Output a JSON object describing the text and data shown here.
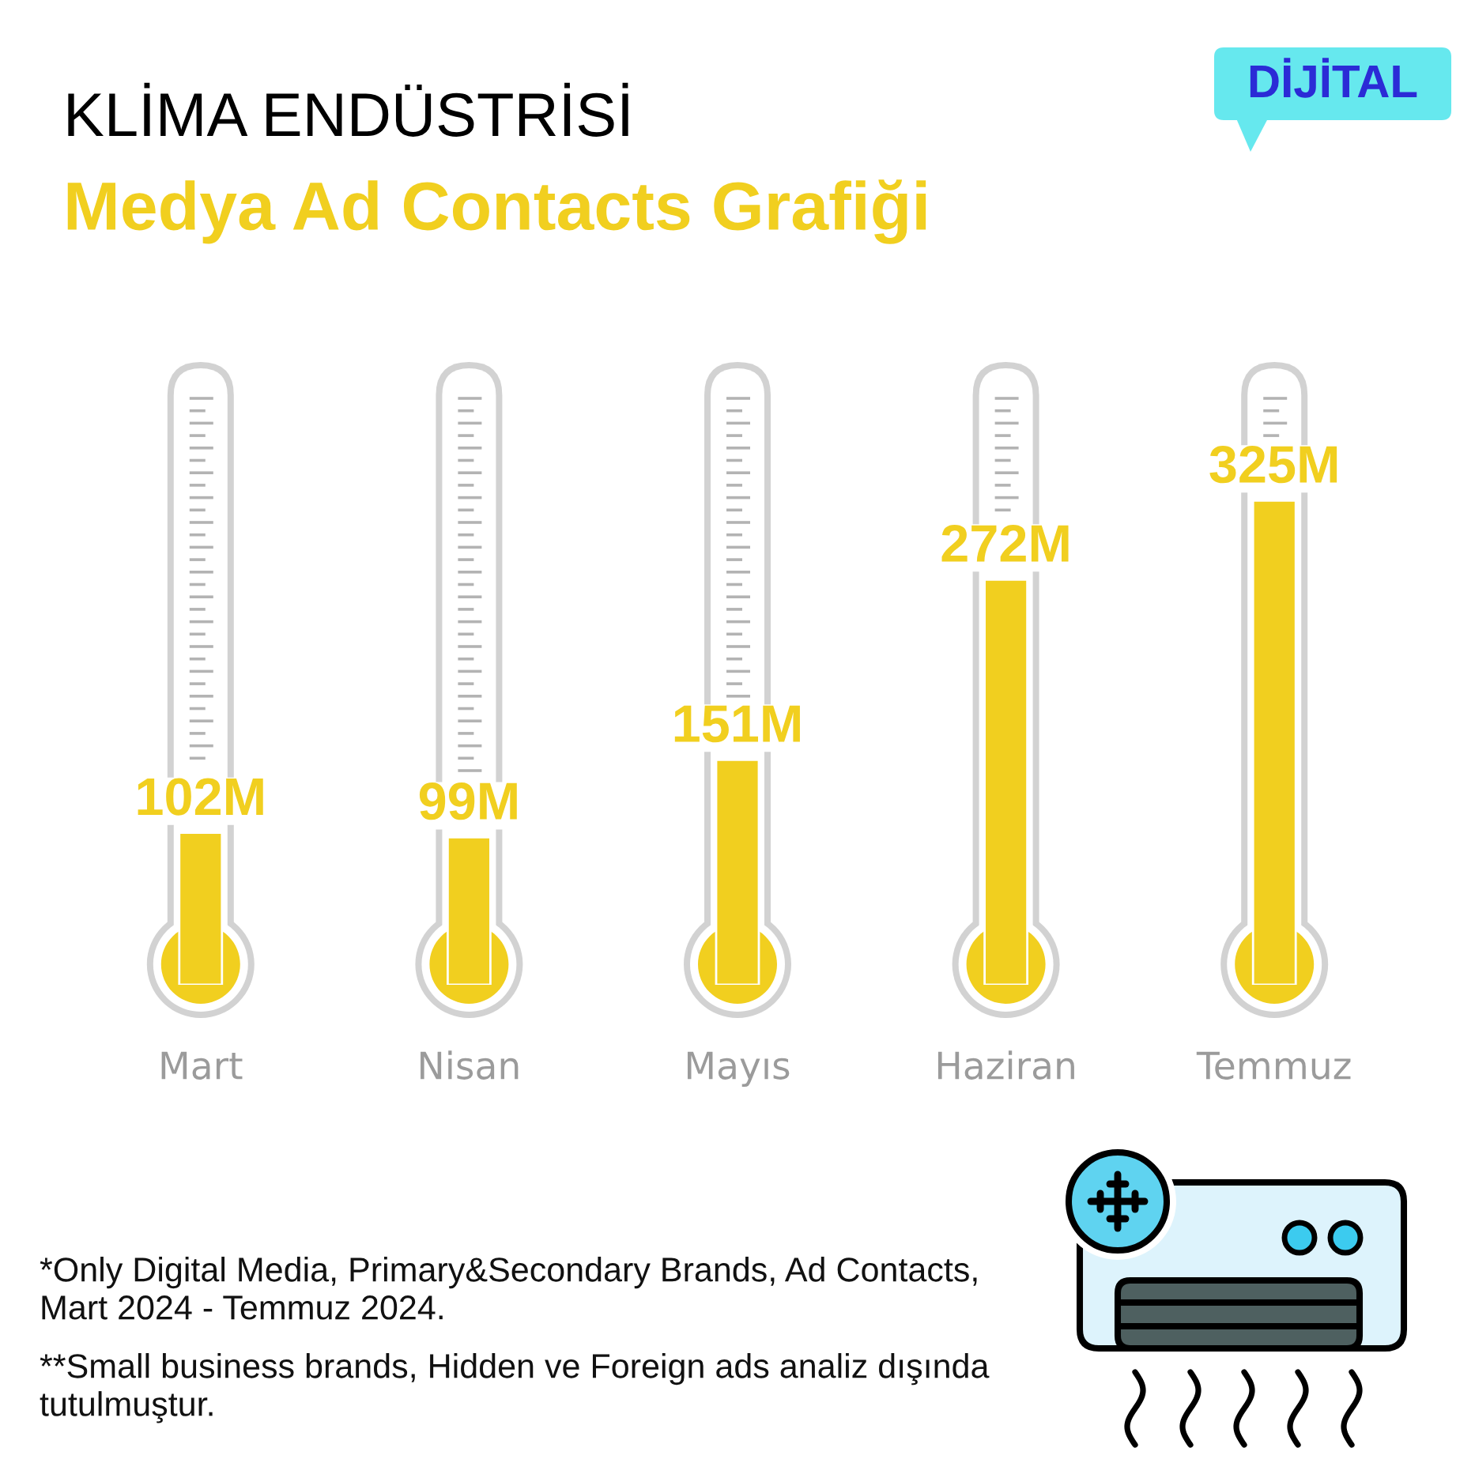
{
  "chart_data": {
    "type": "bar",
    "title": "KLİMA ENDÜSTRİSİ",
    "subtitle": "Medya Ad Contacts Grafiği",
    "categories": [
      "Mart",
      "Nisan",
      "Mayıs",
      "Haziran",
      "Temmuz"
    ],
    "values": [
      102,
      99,
      151,
      272,
      325
    ],
    "color": "#f1cf1f",
    "value_labels": [
      "102M",
      "99M",
      "151M",
      "272M",
      "325M"
    ],
    "tick_labels": "x",
    "annotations": [
      "DİJİTAL",
      "*Only Digital Media, Primary&Secondary Brands, Ad Contacts,\nMart 2024 - Temmuz 2024.",
      "**Small business brands, Hidden ve Foreign ads analiz dışında\ntutulmuştur."
    ]
  }
}
